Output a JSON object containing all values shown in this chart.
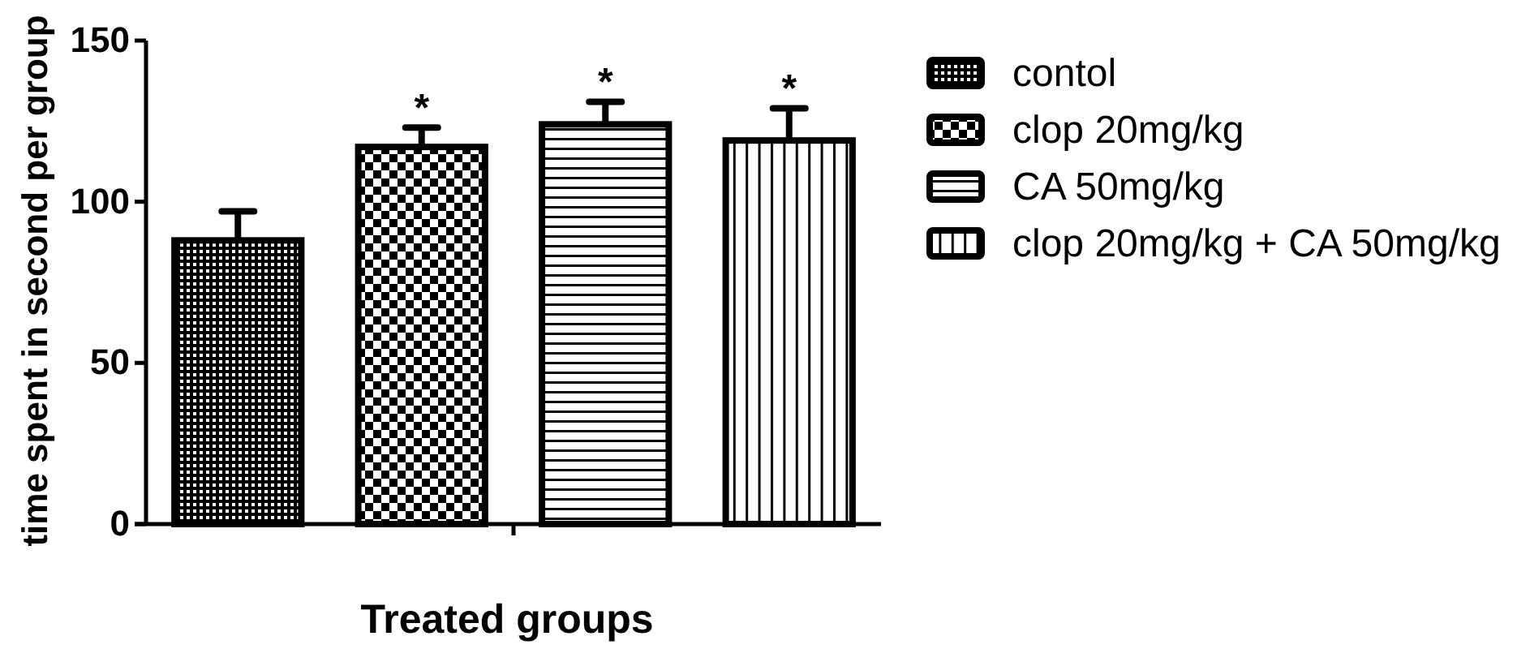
{
  "chart_data": {
    "type": "bar",
    "xlabel": "Treated groups",
    "ylabel": "time spent in second per group",
    "categories": [
      null
    ],
    "series": [
      {
        "name": "contol",
        "color": "#000000",
        "values": [
          88
        ],
        "errors": [
          [
            88,
            97
          ]
        ],
        "value_labels": [
          null
        ]
      },
      {
        "name": "clop 20mg/kg",
        "color": "#000000",
        "values": [
          117
        ],
        "errors": [
          [
            117,
            123
          ]
        ],
        "value_labels": [
          "*"
        ]
      },
      {
        "name": "CA 50mg/kg",
        "color": "#000000",
        "values": [
          124
        ],
        "errors": [
          [
            124,
            131
          ]
        ],
        "value_labels": [
          "*"
        ]
      },
      {
        "name": "clop 20mg/kg + CA 50mg/kg",
        "color": "#000000",
        "values": [
          119
        ],
        "errors": [
          [
            119,
            129
          ]
        ],
        "value_labels": [
          "*"
        ]
      }
    ],
    "ylim": [
      0,
      150
    ],
    "yticks": [
      0,
      50,
      100,
      150
    ],
    "legend": "top right"
  }
}
